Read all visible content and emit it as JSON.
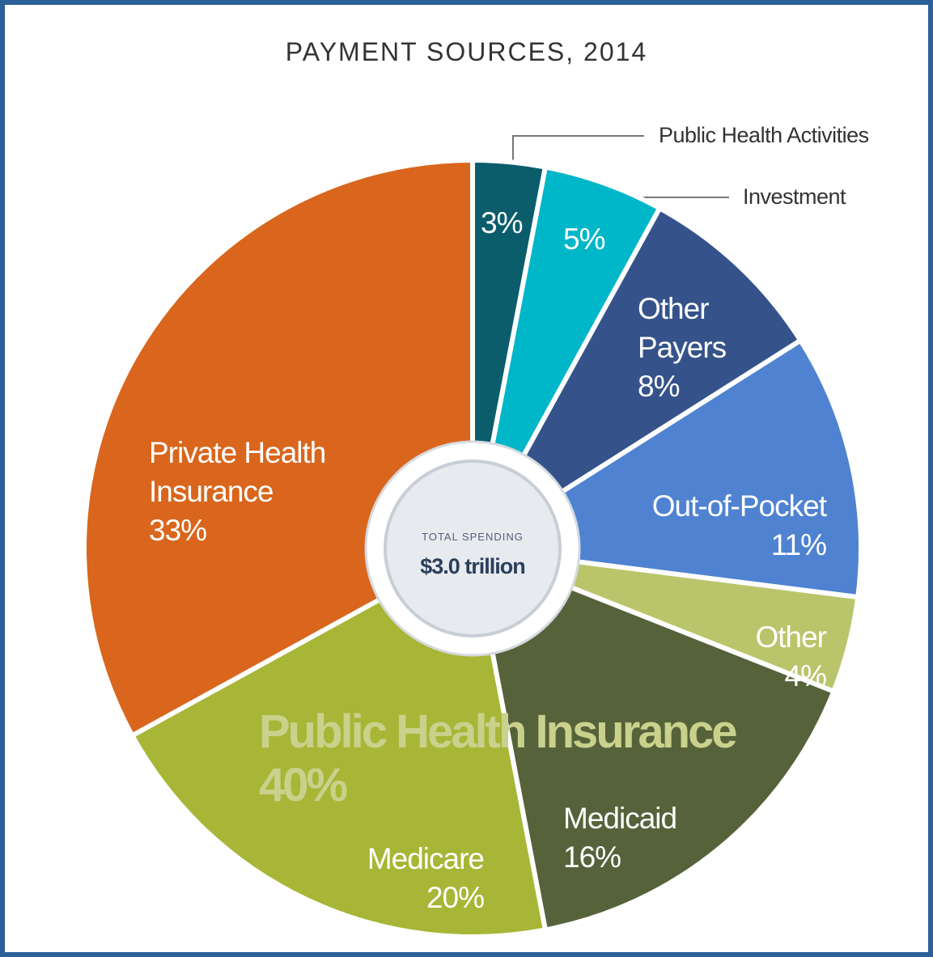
{
  "chart_data": {
    "type": "pie",
    "title": "PAYMENT SOURCES, 2014",
    "categories": [
      "Public Health Activities",
      "Investment",
      "Other Payers",
      "Out-of-Pocket",
      "Other",
      "Medicaid",
      "Medicare",
      "Private Health Insurance"
    ],
    "values": [
      3,
      5,
      8,
      11,
      4,
      16,
      20,
      33
    ],
    "value_labels": [
      "3%",
      "5%",
      "8%",
      "11%",
      "4%",
      "16%",
      "20%",
      "33%"
    ],
    "colors": [
      "#0b5d6b",
      "#00b6c9",
      "#35538a",
      "#4f83d1",
      "#bac56b",
      "#56623a",
      "#a7b636",
      "#d9661c"
    ],
    "center_title": "TOTAL SPENDING",
    "center_value": "$3.0 trillion",
    "annotations": [
      "Public Health Insurance",
      "40%"
    ]
  }
}
